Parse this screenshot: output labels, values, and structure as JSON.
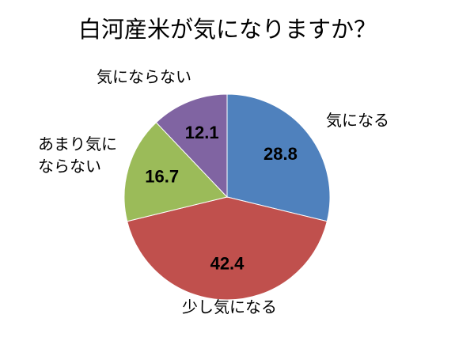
{
  "chart_data": {
    "type": "pie",
    "title": "白河産米が気になりますか？",
    "categories": [
      "気になる",
      "少し気になる",
      "あまり気に\nならない",
      "気にならない"
    ],
    "values": [
      28.8,
      42.4,
      16.7,
      12.1
    ],
    "colors": [
      "#4f81bd",
      "#c0504d",
      "#9bbb59",
      "#8064a2"
    ]
  }
}
